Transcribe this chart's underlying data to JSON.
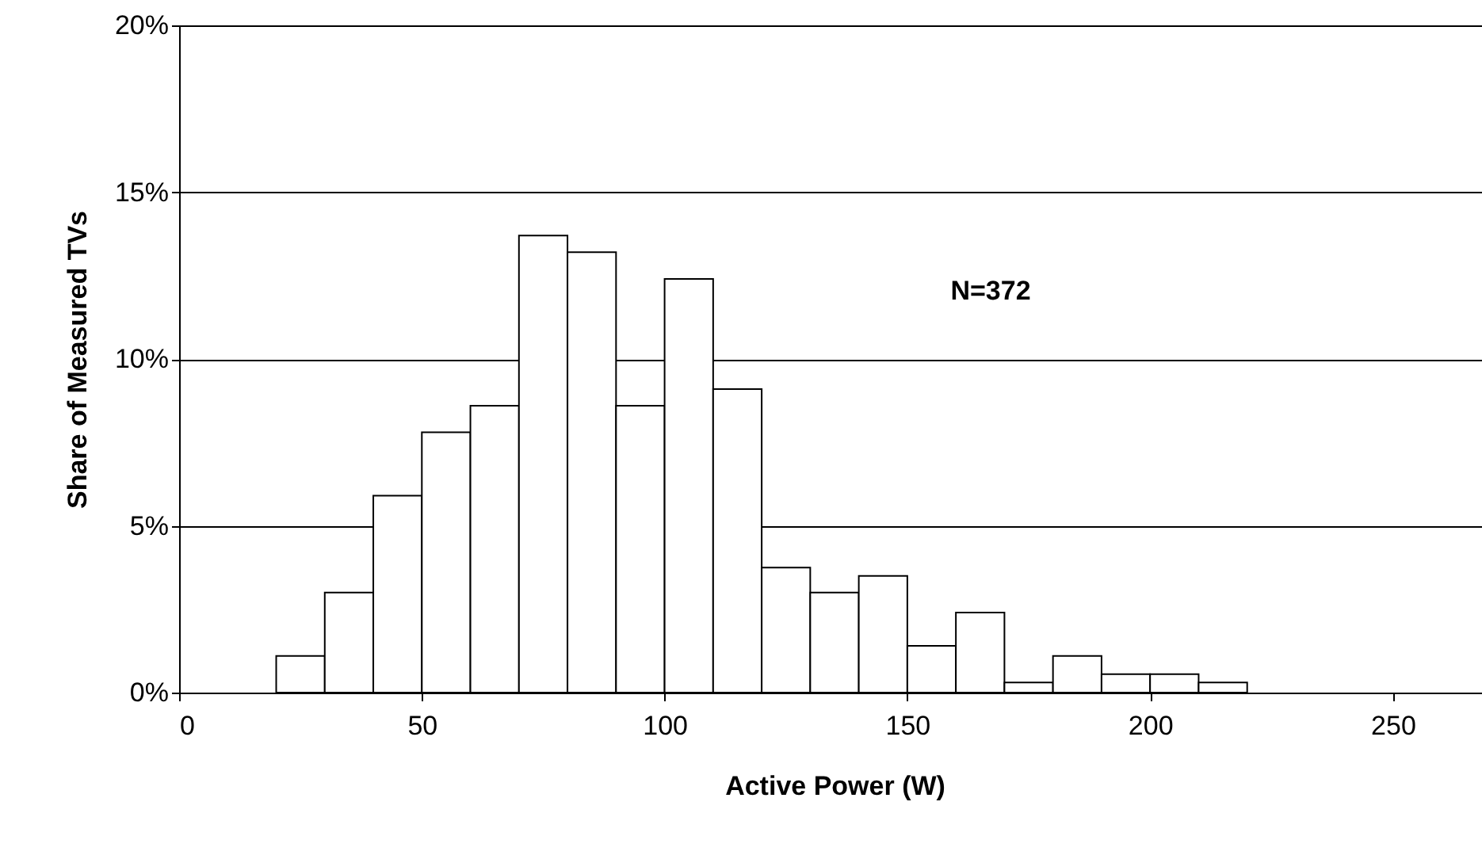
{
  "chart_data": {
    "type": "histogram",
    "xlabel": "Active Power (W)",
    "ylabel": "Share of Measured TVs",
    "bins": [
      20,
      30,
      40,
      50,
      60,
      70,
      80,
      90,
      100,
      110,
      120,
      130,
      140,
      150,
      160,
      170,
      180,
      190,
      200,
      210,
      220
    ],
    "values": [
      1.1,
      3.0,
      5.9,
      7.8,
      8.6,
      13.7,
      13.2,
      8.6,
      12.4,
      9.1,
      3.75,
      3.0,
      3.5,
      1.4,
      2.4,
      0.3,
      1.1,
      0.55,
      0.55,
      0.3
    ],
    "color": "#ffffff",
    "xlim": [
      0,
      270
    ],
    "xticks": [
      0,
      50,
      100,
      150,
      200,
      250
    ],
    "ylim": [
      0,
      20
    ],
    "yticks": [
      {
        "value": 0,
        "label": "0%"
      },
      {
        "value": 5,
        "label": "5%"
      },
      {
        "value": 10,
        "label": "10%"
      },
      {
        "value": 15,
        "label": "15%"
      },
      {
        "value": 20,
        "label": "20%"
      }
    ],
    "grid": "y",
    "annotations": [
      "N=372"
    ]
  }
}
